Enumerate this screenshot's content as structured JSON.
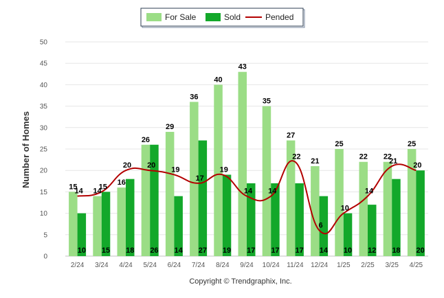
{
  "chart_data": {
    "type": "bar",
    "ylabel": "Number of Homes",
    "xlabel": "",
    "ylim": [
      0,
      50
    ],
    "yticks": [
      0,
      5,
      10,
      15,
      20,
      25,
      30,
      35,
      40,
      45,
      50
    ],
    "grid": true,
    "legend_position": "top-center",
    "categories": [
      "2/24",
      "3/24",
      "4/24",
      "5/24",
      "6/24",
      "7/24",
      "8/24",
      "9/24",
      "10/24",
      "11/24",
      "12/24",
      "1/25",
      "2/25",
      "3/25",
      "4/25"
    ],
    "series": [
      {
        "name": "For Sale",
        "type": "bar",
        "color": "#9bdd86",
        "values": [
          15,
          14,
          16,
          26,
          29,
          36,
          40,
          43,
          35,
          27,
          21,
          25,
          22,
          22,
          25
        ]
      },
      {
        "name": "Sold",
        "type": "bar",
        "color": "#13a82a",
        "values": [
          10,
          15,
          18,
          26,
          14,
          27,
          19,
          17,
          17,
          17,
          14,
          10,
          12,
          18,
          20
        ]
      },
      {
        "name": "Pended",
        "type": "line",
        "color": "#b30000",
        "values": [
          14,
          15,
          20,
          20,
          19,
          17,
          19,
          14,
          14,
          22,
          6,
          10,
          14,
          21,
          20
        ]
      }
    ]
  },
  "footer": {
    "copyright": "Copyright © Trendgraphix, Inc."
  }
}
